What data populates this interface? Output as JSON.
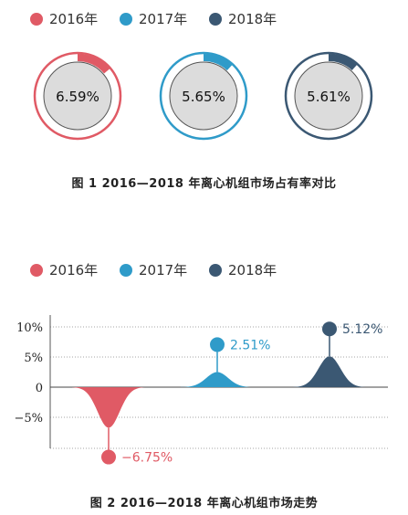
{
  "legend": [
    {
      "label": "2016年",
      "color": "#e05a65"
    },
    {
      "label": "2017年",
      "color": "#2f9bc9"
    },
    {
      "label": "2018年",
      "color": "#3b5873"
    }
  ],
  "captions": {
    "fig1": "图 1    2016—2018 年离心机组市场占有率对比",
    "fig2": "图 2    2016—2018 年离心机组市场走势"
  },
  "chart_data": [
    {
      "type": "pie",
      "variant": "donut-progress",
      "categories": [
        "2016年",
        "2017年",
        "2018年"
      ],
      "values": [
        6.59,
        5.65,
        5.61
      ],
      "value_labels": [
        "6.59%",
        "5.65%",
        "5.61%"
      ],
      "colors": [
        "#e05a65",
        "#2f9bc9",
        "#3b5873"
      ]
    },
    {
      "type": "area",
      "variant": "bell-peaks",
      "categories": [
        "2016年",
        "2017年",
        "2018年"
      ],
      "values": [
        -6.75,
        2.51,
        5.12
      ],
      "value_labels": [
        "−6.75%",
        "2.51%",
        "5.12%"
      ],
      "colors": [
        "#e05a65",
        "#2f9bc9",
        "#3b5873"
      ],
      "yticks": [
        "10%",
        "5%",
        "0",
        "−5%"
      ],
      "ylim": [
        -10,
        10
      ]
    }
  ]
}
